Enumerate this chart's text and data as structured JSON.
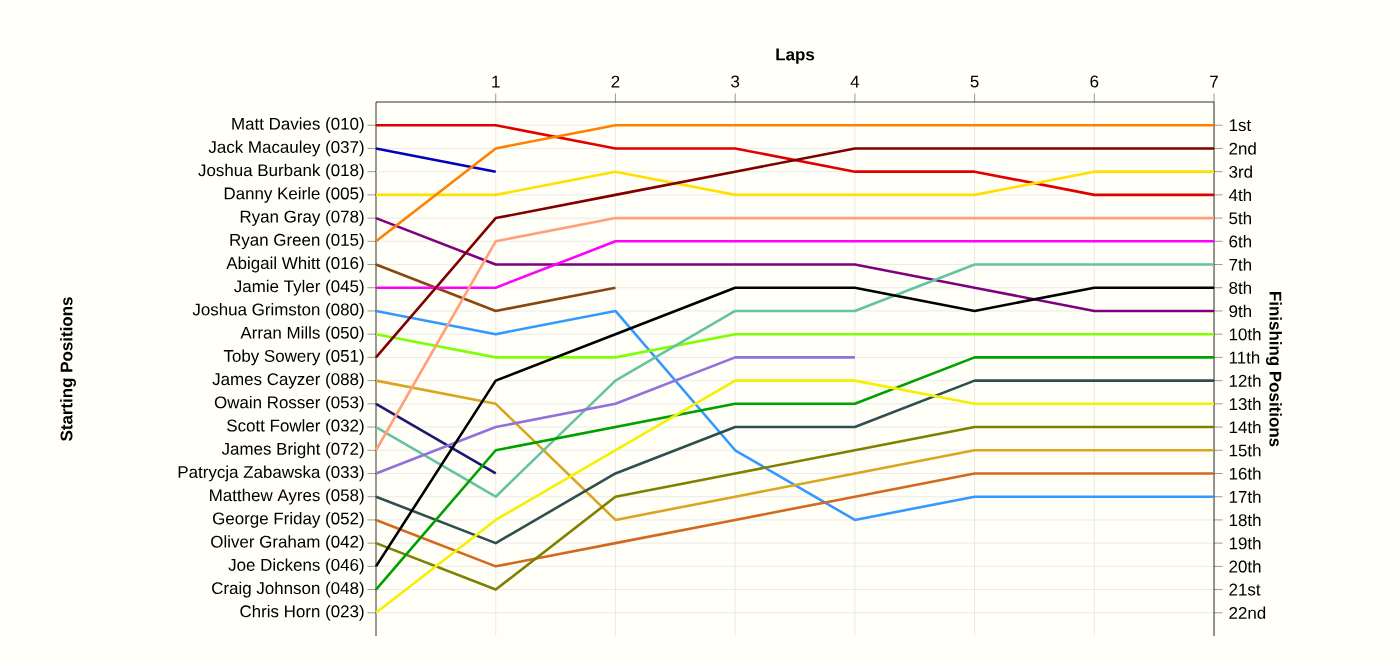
{
  "chart_data": {
    "type": "line",
    "xlabel": "Laps",
    "y2label": "Finishing Positions",
    "x": [
      0,
      1,
      2,
      3,
      4,
      5,
      6,
      7
    ],
    "xlim": [
      0,
      7
    ],
    "xticks": [
      1,
      2,
      3,
      4,
      5,
      6,
      7
    ],
    "grid": true,
    "annotations": [
      "Matt Davies (010)",
      "Jack Macauley (037)",
      "Joshua Burbank (018)",
      "Danny Keirle (005)",
      "Ryan Gray (078)",
      "Ryan Green (015)",
      "Abigail Whitt (016)",
      "Jamie Tyler (045)",
      "Joshua Grimston (080)",
      "Arran Mills (050)",
      "Toby Sowery (051)",
      "James Cayzer (088)",
      "Owain Rosser (053)",
      "Scott Fowler (032)",
      "James Bright (072)",
      "Patrycja Zabawska (033)",
      "Matthew Ayres (058)",
      "George Friday (052)",
      "Oliver Graham (042)",
      "Joe Dickens (046)",
      "Craig Johnson (048)",
      "Chris Horn (023)",
      "Starting Positions"
    ],
    "y2lim": [
      23,
      0
    ],
    "y2ticks": [
      {
        "value": 1,
        "label": "1st"
      },
      {
        "value": 2,
        "label": "2nd"
      },
      {
        "value": 3,
        "label": "3rd"
      },
      {
        "value": 4,
        "label": "4th"
      },
      {
        "value": 5,
        "label": "5th"
      },
      {
        "value": 6,
        "label": "6th"
      },
      {
        "value": 7,
        "label": "7th"
      },
      {
        "value": 8,
        "label": "8th"
      },
      {
        "value": 9,
        "label": "9th"
      },
      {
        "value": 10,
        "label": "10th"
      },
      {
        "value": 11,
        "label": "11th"
      },
      {
        "value": 12,
        "label": "12th"
      },
      {
        "value": 13,
        "label": "13th"
      },
      {
        "value": 14,
        "label": "14th"
      },
      {
        "value": 15,
        "label": "15th"
      },
      {
        "value": 16,
        "label": "16th"
      },
      {
        "value": 17,
        "label": "17th"
      },
      {
        "value": 18,
        "label": "18th"
      },
      {
        "value": 19,
        "label": "19th"
      },
      {
        "value": 20,
        "label": "20th"
      },
      {
        "value": 21,
        "label": "21st"
      },
      {
        "value": 22,
        "label": "22nd"
      }
    ],
    "series": [
      {
        "axis": "y2",
        "color": "#e00000",
        "values": [
          1,
          1,
          2,
          2,
          3,
          3,
          4,
          4
        ]
      },
      {
        "axis": "y2",
        "color": "#0000c0",
        "values": [
          2,
          3,
          null,
          null,
          null,
          null,
          null,
          null
        ]
      },
      {
        "axis": "y2",
        "color": "#ffe000",
        "values": [
          4,
          4,
          3,
          4,
          4,
          4,
          3,
          3
        ]
      },
      {
        "axis": "y2",
        "color": "#800080",
        "values": [
          5,
          7,
          7,
          7,
          7,
          8,
          9,
          9
        ]
      },
      {
        "axis": "y2",
        "color": "#ff8000",
        "values": [
          6,
          2,
          1,
          1,
          1,
          1,
          1,
          1
        ]
      },
      {
        "axis": "y2",
        "color": "#8b4513",
        "values": [
          7,
          9,
          8,
          null,
          null,
          null,
          null,
          null
        ]
      },
      {
        "axis": "y2",
        "color": "#ff00ff",
        "values": [
          8,
          8,
          6,
          6,
          6,
          6,
          6,
          6
        ]
      },
      {
        "axis": "y2",
        "color": "#3399ff",
        "values": [
          9,
          10,
          9,
          15,
          18,
          17,
          17,
          17
        ]
      },
      {
        "axis": "y2",
        "color": "#80ff00",
        "values": [
          10,
          11,
          11,
          10,
          10,
          10,
          10,
          10
        ]
      },
      {
        "axis": "y2",
        "color": "#800000",
        "values": [
          11,
          5,
          4,
          3,
          2,
          2,
          2,
          2
        ]
      },
      {
        "axis": "y2",
        "color": "#daa520",
        "values": [
          12,
          13,
          18,
          17,
          16,
          15,
          15,
          15
        ]
      },
      {
        "axis": "y2",
        "color": "#191970",
        "values": [
          13,
          16,
          null,
          null,
          null,
          null,
          null,
          null
        ]
      },
      {
        "axis": "y2",
        "color": "#66c2a5",
        "values": [
          14,
          17,
          12,
          9,
          9,
          7,
          7,
          7
        ]
      },
      {
        "axis": "y2",
        "color": "#ffa07a",
        "values": [
          15,
          6,
          5,
          5,
          5,
          5,
          5,
          5
        ]
      },
      {
        "axis": "y2",
        "color": "#9370db",
        "values": [
          16,
          14,
          13,
          11,
          11,
          null,
          null,
          null
        ]
      },
      {
        "axis": "y2",
        "color": "#2f4f4f",
        "values": [
          17,
          19,
          16,
          14,
          14,
          12,
          12,
          12
        ]
      },
      {
        "axis": "y2",
        "color": "#d2691e",
        "values": [
          18,
          20,
          19,
          18,
          17,
          16,
          16,
          16
        ]
      },
      {
        "axis": "y2",
        "color": "#808000",
        "values": [
          19,
          21,
          17,
          16,
          15,
          14,
          14,
          14
        ]
      },
      {
        "axis": "y2",
        "color": "#000000",
        "values": [
          20,
          12,
          10,
          8,
          8,
          9,
          8,
          8
        ]
      },
      {
        "axis": "y2",
        "color": "#00a000",
        "values": [
          21,
          15,
          14,
          13,
          13,
          11,
          11,
          11
        ]
      },
      {
        "axis": "y2",
        "color": "#f5f000",
        "values": [
          22,
          18,
          15,
          12,
          12,
          13,
          13,
          13
        ]
      }
    ]
  }
}
